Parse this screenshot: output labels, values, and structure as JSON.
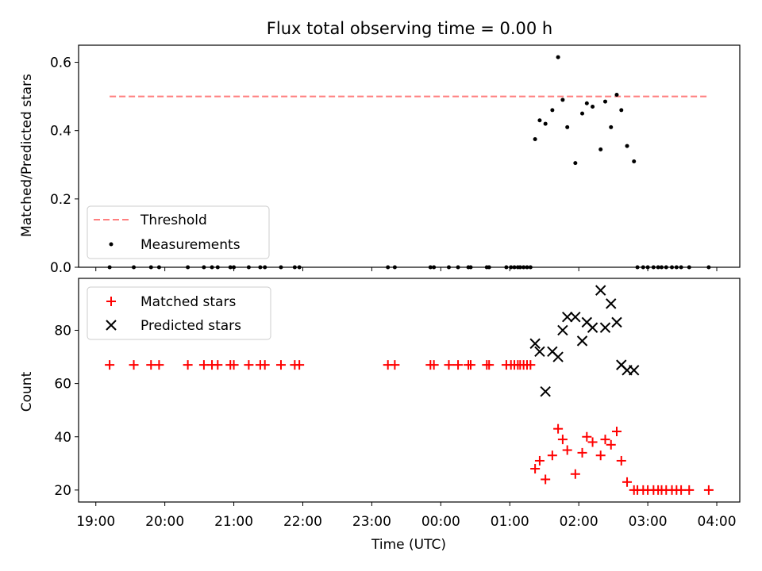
{
  "chart_data": [
    {
      "type": "scatter",
      "title": "Flux total observing time = 0.00 h",
      "ylabel": "Matched/Predicted stars",
      "xlabel": "",
      "xlim": [
        "18:45",
        "04:20"
      ],
      "ylim": [
        0,
        0.65
      ],
      "yticks": [
        0.0,
        0.2,
        0.4,
        0.6
      ],
      "ytick_labels": [
        "0.0",
        "0.2",
        "0.4",
        "0.6"
      ],
      "legend": {
        "position": "lower-left",
        "entries": [
          "Threshold",
          "Measurements"
        ]
      },
      "threshold": {
        "name": "Threshold",
        "value": 0.5,
        "x_start": "19:12",
        "x_end": "03:53",
        "color": "#ff7f7f",
        "style": "dashed"
      },
      "measurements": {
        "name": "Measurements",
        "color": "#000000",
        "x": [
          "19:12",
          "19:33",
          "19:48",
          "19:55",
          "20:20",
          "20:34",
          "20:41",
          "20:46",
          "20:57",
          "21:00",
          "21:13",
          "21:23",
          "21:27",
          "21:41",
          "21:53",
          "21:57",
          "23:14",
          "23:20",
          "23:51",
          "23:54",
          "24:07",
          "24:15",
          "24:24",
          "24:26",
          "24:40",
          "24:42",
          "24:57",
          "25:01",
          "25:04",
          "25:07",
          "25:09",
          "25:12",
          "25:15",
          "25:18",
          "25:22",
          "25:26",
          "25:31",
          "25:37",
          "25:42",
          "25:46",
          "25:50",
          "25:57",
          "26:03",
          "26:07",
          "26:12",
          "26:19",
          "26:23",
          "26:28",
          "26:33",
          "26:37",
          "26:42",
          "26:48",
          "26:51",
          "26:56",
          "27:00",
          "27:05",
          "27:09",
          "27:12",
          "27:16",
          "27:21",
          "27:25",
          "27:29",
          "27:36",
          "27:53"
        ],
        "y": [
          0,
          0,
          0,
          0,
          0,
          0,
          0,
          0,
          0,
          0,
          0,
          0,
          0,
          0,
          0,
          0,
          0,
          0,
          0,
          0,
          0,
          0,
          0,
          0,
          0,
          0,
          0,
          0,
          0,
          0,
          0,
          0,
          0,
          0,
          0.375,
          0.43,
          0.42,
          0.46,
          0.615,
          0.49,
          0.41,
          0.305,
          0.45,
          0.48,
          0.47,
          0.345,
          0.485,
          0.41,
          0.505,
          0.46,
          0.355,
          0.31,
          0,
          0,
          0,
          0,
          0,
          0,
          0,
          0,
          0,
          0,
          0,
          0
        ]
      }
    },
    {
      "type": "scatter",
      "title": "",
      "ylabel": "Count",
      "xlabel": "Time (UTC)",
      "xlim": [
        "18:45",
        "04:20"
      ],
      "ylim": [
        15.5,
        99.5
      ],
      "yticks": [
        20,
        40,
        60,
        80
      ],
      "ytick_labels": [
        "20",
        "40",
        "60",
        "80"
      ],
      "xticks": [
        "19:00",
        "20:00",
        "21:00",
        "22:00",
        "23:00",
        "00:00",
        "01:00",
        "02:00",
        "03:00",
        "04:00"
      ],
      "legend": {
        "position": "upper-left",
        "entries": [
          "Matched stars",
          "Predicted stars"
        ]
      },
      "matched": {
        "name": "Matched stars",
        "color": "#ff0000",
        "marker": "+",
        "x": [
          "19:12",
          "19:33",
          "19:48",
          "19:55",
          "20:20",
          "20:34",
          "20:41",
          "20:46",
          "20:57",
          "21:00",
          "21:13",
          "21:23",
          "21:27",
          "21:41",
          "21:53",
          "21:57",
          "23:14",
          "23:20",
          "23:51",
          "23:54",
          "24:07",
          "24:15",
          "24:24",
          "24:26",
          "24:40",
          "24:42",
          "24:57",
          "25:01",
          "25:04",
          "25:07",
          "25:09",
          "25:12",
          "25:15",
          "25:18",
          "25:22",
          "25:26",
          "25:31",
          "25:37",
          "25:42",
          "25:46",
          "25:50",
          "25:57",
          "26:03",
          "26:07",
          "26:12",
          "26:19",
          "26:23",
          "26:28",
          "26:33",
          "26:37",
          "26:42",
          "26:48",
          "26:51",
          "26:56",
          "27:00",
          "27:05",
          "27:09",
          "27:12",
          "27:16",
          "27:21",
          "27:25",
          "27:29",
          "27:36",
          "27:53"
        ],
        "y": [
          67,
          67,
          67,
          67,
          67,
          67,
          67,
          67,
          67,
          67,
          67,
          67,
          67,
          67,
          67,
          67,
          67,
          67,
          67,
          67,
          67,
          67,
          67,
          67,
          67,
          67,
          67,
          67,
          67,
          67,
          67,
          67,
          67,
          67,
          28,
          31,
          24,
          33,
          43,
          39,
          35,
          26,
          34,
          40,
          38,
          33,
          39,
          37,
          42,
          31,
          23,
          20,
          20,
          20,
          20,
          20,
          20,
          20,
          20,
          20,
          20,
          20,
          20,
          20
        ]
      },
      "predicted": {
        "name": "Predicted stars",
        "color": "#000000",
        "marker": "x",
        "x": [
          "25:22",
          "25:26",
          "25:31",
          "25:37",
          "25:42",
          "25:46",
          "25:50",
          "25:57",
          "26:03",
          "26:07",
          "26:12",
          "26:19",
          "26:23",
          "26:28",
          "26:33",
          "26:37",
          "26:42",
          "26:48"
        ],
        "y": [
          75,
          72,
          57,
          72,
          70,
          80,
          85,
          85,
          76,
          83,
          81,
          95,
          81,
          90,
          83,
          67,
          65,
          65
        ]
      }
    }
  ]
}
